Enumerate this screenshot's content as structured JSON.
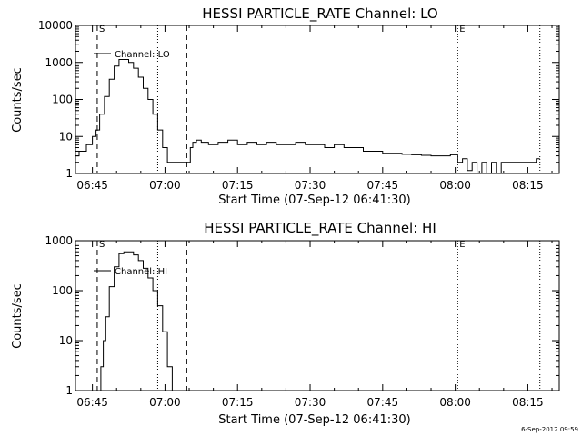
{
  "colors": {
    "background": "#ffffff",
    "foreground": "#000000"
  },
  "footer": {
    "timestamp": "6-Sep-2012 09:59"
  },
  "chart_data": [
    {
      "type": "line",
      "title": "HESSI PARTICLE_RATE Channel: LO",
      "ylabel": "Counts/sec",
      "xlabel": "Start Time (07-Sep-12 06:41:30)",
      "y_scale": "log",
      "ylim": [
        1,
        10000
      ],
      "xlim": [
        "06:41:30",
        "08:21:30"
      ],
      "x_ticks": [
        "06:45",
        "07:00",
        "07:15",
        "07:30",
        "07:45",
        "08:00",
        "08:15"
      ],
      "y_ticks": [
        "1",
        "10",
        "100",
        "1000",
        "10000"
      ],
      "legend": {
        "position": "top-left",
        "entries": [
          "Channel: LO"
        ]
      },
      "markers": [
        {
          "label": "S",
          "time": "06:46:00",
          "style": "dashed"
        },
        {
          "label": "",
          "time": "06:58:30",
          "style": "dotted"
        },
        {
          "label": "",
          "time": "07:04:30",
          "style": "dashed"
        },
        {
          "label": "E",
          "time": "08:00:30",
          "style": "dotted"
        },
        {
          "label": "",
          "time": "08:17:30",
          "style": "dotted"
        }
      ],
      "series": [
        {
          "x": [
            "06:41:30",
            "06:43:00",
            "06:44:30",
            "06:45:30",
            "06:46:00",
            "06:47:00",
            "06:48:00",
            "06:49:00",
            "06:50:00",
            "06:51:00",
            "06:52:00",
            "06:53:00",
            "06:54:00",
            "06:55:00",
            "06:56:00",
            "06:57:00",
            "06:58:00",
            "06:59:00",
            "07:00:00",
            "07:01:00",
            "07:02:00",
            "07:03:00",
            "07:04:00",
            "07:05:00",
            "07:05:30",
            "07:06:00",
            "07:07:00",
            "07:08:00",
            "07:10:00",
            "07:12:00",
            "07:14:00",
            "07:16:00",
            "07:18:00",
            "07:20:00",
            "07:22:00",
            "07:24:00",
            "07:26:00",
            "07:28:00",
            "07:30:00",
            "07:32:00",
            "07:34:00",
            "07:36:00",
            "07:38:00",
            "07:40:00",
            "07:42:00",
            "07:44:00",
            "07:46:00",
            "07:48:00",
            "07:50:00",
            "07:52:00",
            "07:54:00",
            "07:56:00",
            "07:58:00",
            "08:00:00",
            "08:01:00",
            "08:02:00",
            "08:03:00",
            "08:04:00",
            "08:05:00",
            "08:06:00",
            "08:07:00",
            "08:08:00",
            "08:09:00",
            "08:10:00",
            "08:12:00",
            "08:14:00",
            "08:16:00",
            "08:17:30"
          ],
          "values": [
            3,
            4,
            6,
            10,
            15,
            40,
            120,
            350,
            800,
            1200,
            1200,
            1000,
            700,
            400,
            200,
            100,
            40,
            15,
            5,
            2,
            2,
            2,
            2,
            2,
            5,
            7,
            8,
            7,
            6,
            7,
            8,
            6,
            7,
            6,
            7,
            6,
            6,
            7,
            6,
            6,
            5,
            6,
            5,
            5,
            4,
            4,
            3.5,
            3.5,
            3.3,
            3.2,
            3.1,
            3,
            3,
            3.2,
            2,
            2.5,
            1.2,
            2,
            1,
            2,
            1,
            2,
            1,
            2,
            2,
            2,
            2,
            2.5
          ]
        }
      ]
    },
    {
      "type": "line",
      "title": "HESSI PARTICLE_RATE Channel: HI",
      "ylabel": "Counts/sec",
      "xlabel": "Start Time (07-Sep-12 06:41:30)",
      "y_scale": "log",
      "ylim": [
        1,
        1000
      ],
      "xlim": [
        "06:41:30",
        "08:21:30"
      ],
      "x_ticks": [
        "06:45",
        "07:00",
        "07:15",
        "07:30",
        "07:45",
        "08:00",
        "08:15"
      ],
      "y_ticks": [
        "1",
        "10",
        "100",
        "1000"
      ],
      "legend": {
        "position": "top-left",
        "entries": [
          "Channel: HI"
        ]
      },
      "markers": [
        {
          "label": "S",
          "time": "06:46:00",
          "style": "dashed"
        },
        {
          "label": "",
          "time": "06:58:30",
          "style": "dotted"
        },
        {
          "label": "",
          "time": "07:04:30",
          "style": "dashed"
        },
        {
          "label": "E",
          "time": "08:00:30",
          "style": "dotted"
        },
        {
          "label": "",
          "time": "08:17:30",
          "style": "dotted"
        }
      ],
      "series": [
        {
          "x": [
            "06:46:30",
            "06:47:00",
            "06:47:30",
            "06:48:00",
            "06:49:00",
            "06:50:00",
            "06:51:00",
            "06:52:00",
            "06:53:00",
            "06:54:00",
            "06:55:00",
            "06:56:00",
            "06:57:00",
            "06:58:00",
            "06:59:00",
            "07:00:00",
            "07:01:00",
            "07:02:00"
          ],
          "values": [
            1,
            3,
            10,
            30,
            120,
            300,
            550,
            600,
            600,
            520,
            400,
            280,
            180,
            100,
            50,
            15,
            3,
            1
          ]
        }
      ]
    }
  ]
}
